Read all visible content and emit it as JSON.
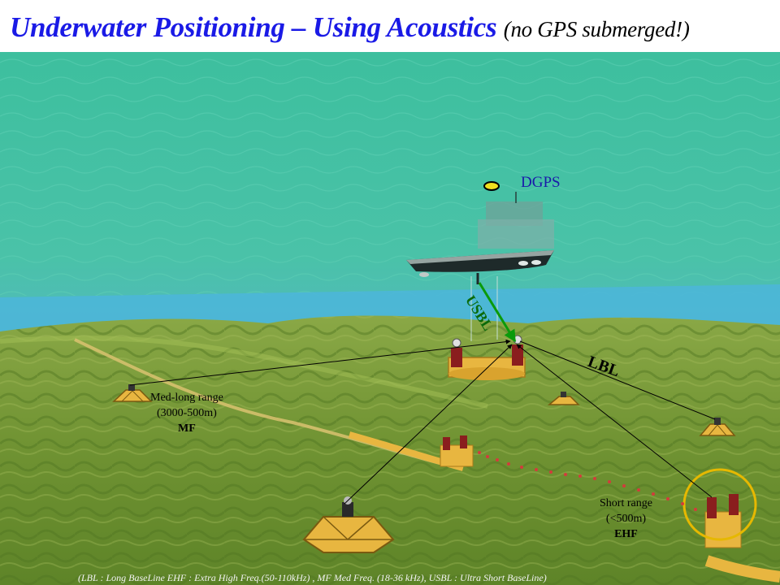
{
  "title": {
    "main": "Underwater Positioning – Using Acoustics",
    "sub": "(no GPS submerged!)"
  },
  "labels": {
    "dgps": "DGPS",
    "usbl": "USBL",
    "lbl": "LBL",
    "med_long": {
      "line1": "Med-long range",
      "line2": "(3000-500m)",
      "line3": "MF"
    },
    "short": {
      "line1": "Short range",
      "line2": "(<500m)",
      "line3": "EHF"
    }
  },
  "footnote": "(LBL : Long BaseLine EHF : Extra High Freq.(50-110kHz) , MF Med Freq. (18-36 kHz), USBL : Ultra Short BaseLine)",
  "colors": {
    "water": "#3fb89a",
    "seabed": "#7e9e36",
    "title": "#1a1ae6",
    "usbl": "#0a9a0a",
    "highlight_ring": "#e6b800",
    "pipeline": "#e8b640",
    "acoustic_dots": "#d23c3c"
  }
}
